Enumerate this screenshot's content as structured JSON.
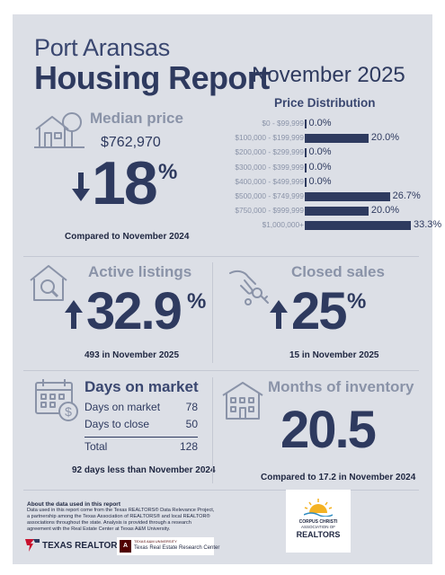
{
  "header": {
    "city": "Port Aransas",
    "title": "Housing Report",
    "month": "November 2025"
  },
  "price_distribution": {
    "title": "Price Distribution",
    "rows": [
      {
        "label": "$0 - $99,999",
        "value": "0.0%",
        "pct": 0.0
      },
      {
        "label": "$100,000 - $199,999",
        "value": "20.0%",
        "pct": 20.0
      },
      {
        "label": "$200,000 - $299,999",
        "value": "0.0%",
        "pct": 0.0
      },
      {
        "label": "$300,000 - $399,999",
        "value": "0.0%",
        "pct": 0.0
      },
      {
        "label": "$400,000 - $499,999",
        "value": "0.0%",
        "pct": 0.0
      },
      {
        "label": "$500,000 - $749,999",
        "value": "26.7%",
        "pct": 26.7
      },
      {
        "label": "$750,000 - $999,999",
        "value": "20.0%",
        "pct": 20.0
      },
      {
        "label": "$1,000,000+",
        "value": "33.3%",
        "pct": 33.3
      }
    ]
  },
  "median_price": {
    "title": "Median price",
    "value": "$762,970",
    "change": "18",
    "pct_sign": "%",
    "direction": "down",
    "note": "Compared to November 2024",
    "icon": "house-tree-icon"
  },
  "active_listings": {
    "title": "Active listings",
    "change": "32.9",
    "pct_sign": "%",
    "direction": "up",
    "note": "493 in November 2025",
    "icon": "house-magnifier-icon"
  },
  "closed_sales": {
    "title": "Closed sales",
    "change": "25",
    "pct_sign": "%",
    "direction": "up",
    "note": "15 in November 2025",
    "icon": "hand-keys-icon"
  },
  "days_on_market": {
    "title": "Days on market",
    "rows": [
      {
        "label": "Days on market",
        "value": "78"
      },
      {
        "label": "Days to close",
        "value": "50"
      }
    ],
    "total_label": "Total",
    "total_value": "128",
    "note": "92 days less than November 2024",
    "icon": "calendar-dollar-icon"
  },
  "months_inventory": {
    "title": "Months of inventory",
    "value": "20.5",
    "note": "Compared to 17.2 in November 2024",
    "icon": "building-icon"
  },
  "about": {
    "title": "About the data used in this report",
    "body": "Data used in this report come from the Texas REALTORS® Data Relevance Project, a partnership among the Texas Association of REALTORS® and local REALTOR® associations throughout the state. Analysis is provided through a research agreement with the Real Estate Center at Texas A&M University."
  },
  "footer": {
    "texas_realtors": "TEXAS REALTORS",
    "tamu_small": "TEXAS A&M UNIVERSITY",
    "tamu_center": "Texas Real Estate Research Center",
    "cc_line1": "CORPUS CHRISTI",
    "cc_line2": "ASSOCIATION OF",
    "cc_line3": "REALTORS"
  },
  "colors": {
    "navy": "#2e3a5f",
    "muted": "#8a93a8",
    "background": "#dcdfe6",
    "texas_red": "#c8102e",
    "aggie_maroon": "#500000",
    "sun_yellow": "#f4b223"
  }
}
